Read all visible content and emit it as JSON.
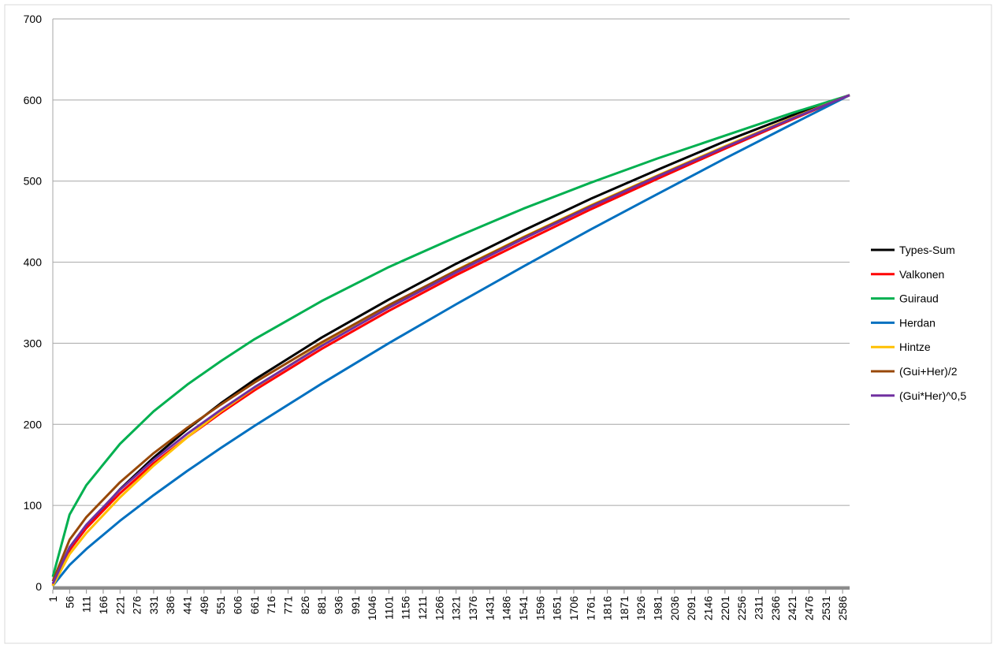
{
  "chart_data": {
    "type": "line",
    "x": [
      1,
      56,
      111,
      221,
      331,
      441,
      551,
      661,
      881,
      1101,
      1321,
      1541,
      1761,
      1981,
      2201,
      2421,
      2609
    ],
    "series": [
      {
        "name": "Types-Sum",
        "color": "#000000",
        "values": [
          1,
          45,
          74,
          120,
          159,
          194,
          226,
          255,
          307,
          354,
          398,
          439,
          478,
          514,
          549,
          581,
          606
        ]
      },
      {
        "name": "Valkonen",
        "color": "#ff0000",
        "values": [
          2,
          45,
          72,
          115,
          152,
          184,
          214,
          242,
          293,
          340,
          384,
          425,
          465,
          503,
          540,
          576,
          606
        ]
      },
      {
        "name": "Guiraud",
        "color": "#00b050",
        "values": [
          12,
          88.8,
          125,
          176,
          216,
          249,
          278,
          305,
          352,
          394,
          431,
          466,
          498,
          528,
          556,
          584,
          606
        ]
      },
      {
        "name": "Herdan",
        "color": "#0070c0",
        "values": [
          1,
          26.5,
          46.3,
          81.1,
          112.7,
          142.5,
          170.8,
          198.1,
          250.2,
          300.1,
          348.1,
          394.6,
          440.2,
          484.3,
          527.8,
          570.2,
          606
        ]
      },
      {
        "name": "Hintze",
        "color": "#ffc000",
        "values": [
          1,
          40,
          66,
          110,
          149,
          184,
          216,
          245,
          298,
          346,
          390,
          431,
          470,
          507,
          543,
          578,
          606
        ]
      },
      {
        "name": "(Gui+Her)/2",
        "color": "#984807",
        "values": [
          6.5,
          57.7,
          85.7,
          128.6,
          164.4,
          195.8,
          224.4,
          251.6,
          301.1,
          347.1,
          389.6,
          430.3,
          469.1,
          506.2,
          541.9,
          577.1,
          606
        ]
      },
      {
        "name": "(Gui*Her)^0,5",
        "color": "#7030a0",
        "values": [
          3.5,
          48.5,
          76.1,
          119.5,
          156.0,
          188.4,
          217.9,
          245.8,
          296.8,
          343.9,
          387.3,
          428.8,
          468.2,
          505.7,
          541.7,
          577.1,
          606
        ]
      }
    ],
    "xlim": [
      1,
      2609
    ],
    "xticks": [
      1,
      56,
      111,
      166,
      221,
      276,
      331,
      386,
      441,
      496,
      551,
      606,
      661,
      716,
      771,
      826,
      881,
      936,
      991,
      1046,
      1101,
      1156,
      1211,
      1266,
      1321,
      1376,
      1431,
      1486,
      1541,
      1596,
      1651,
      1706,
      1761,
      1816,
      1871,
      1926,
      1981,
      2036,
      2091,
      2146,
      2201,
      2256,
      2311,
      2366,
      2421,
      2476,
      2531,
      2586
    ],
    "ylim": [
      0,
      700
    ],
    "yticks": [
      0,
      100,
      200,
      300,
      400,
      500,
      600,
      700
    ],
    "grid": true,
    "legend": "right"
  }
}
